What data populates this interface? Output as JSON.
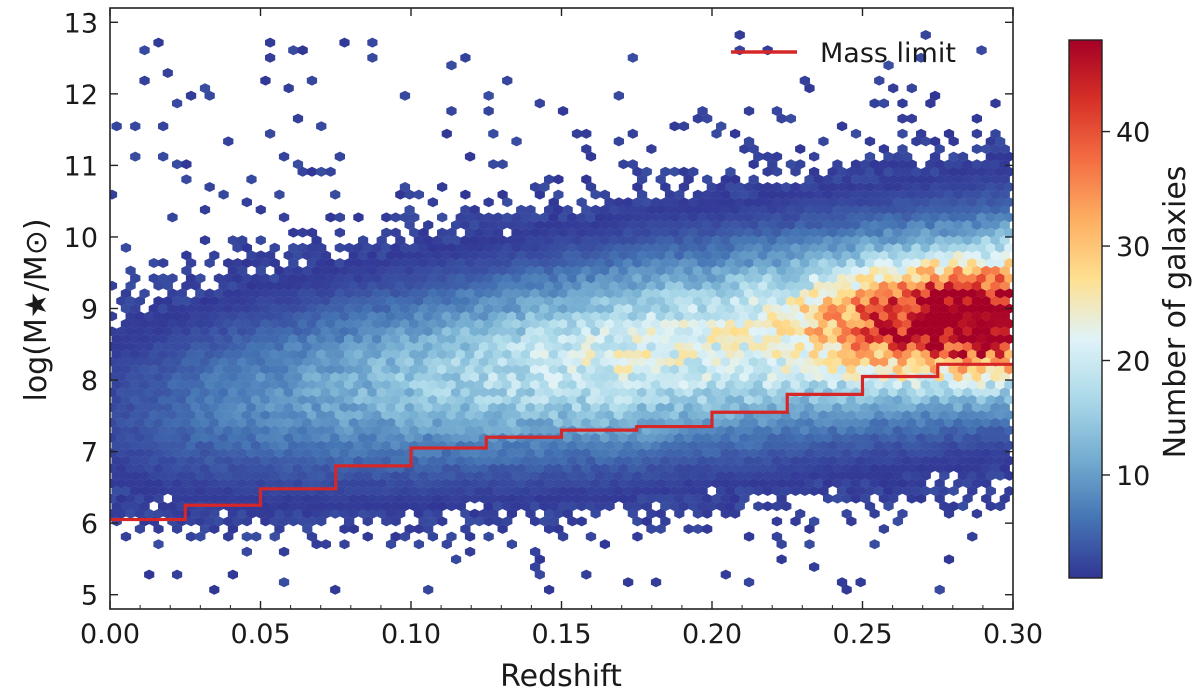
{
  "chart_data": {
    "type": "hexbin",
    "xlabel": "Redshift",
    "ylabel": "log(M★/M⊙)",
    "xlim": [
      0.0,
      0.3
    ],
    "ylim": [
      4.8,
      13.2
    ],
    "x_ticks": [
      "0.00",
      "0.05",
      "0.10",
      "0.15",
      "0.20",
      "0.25",
      "0.30"
    ],
    "y_ticks": [
      "5",
      "6",
      "7",
      "8",
      "9",
      "10",
      "11",
      "12",
      "13"
    ],
    "colorbar": {
      "label": "Number of galaxies",
      "range": [
        1,
        48
      ],
      "ticks": [
        "10",
        "20",
        "30",
        "40"
      ],
      "colormap": [
        "#313695",
        "#4575b4",
        "#74add1",
        "#abd9e9",
        "#e0f3f8",
        "#fee090",
        "#fdae61",
        "#f46d43",
        "#d73027",
        "#a50026"
      ]
    },
    "density_peak": {
      "x": 0.29,
      "y": 8.85,
      "count": 48
    },
    "mass_limit": {
      "name": "Mass limit",
      "color": "#d62728",
      "bin_edges": [
        0.0,
        0.025,
        0.05,
        0.075,
        0.1,
        0.125,
        0.15,
        0.175,
        0.2,
        0.225,
        0.25,
        0.275,
        0.3
      ],
      "values": [
        6.05,
        6.25,
        6.48,
        6.8,
        7.05,
        7.2,
        7.3,
        7.35,
        7.55,
        7.8,
        8.05,
        8.22
      ]
    },
    "legend_position": "top-right",
    "point_color": "#3b5ba5"
  }
}
